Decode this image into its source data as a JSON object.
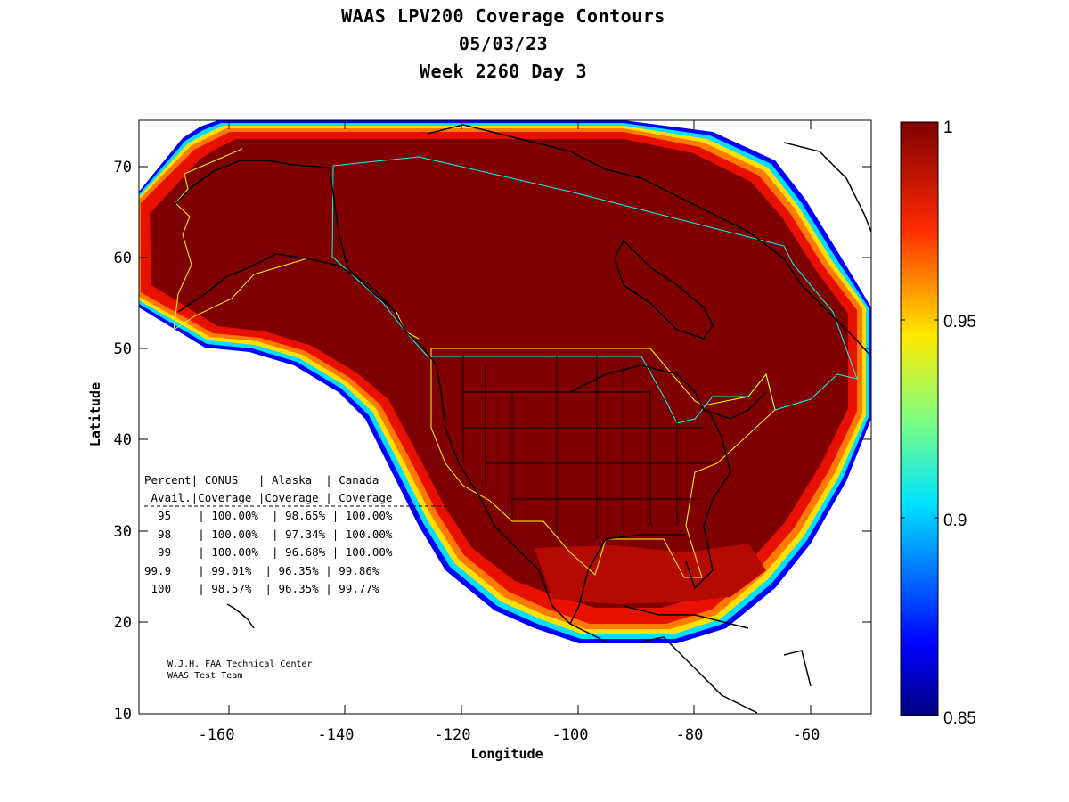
{
  "title": {
    "line1": "WAAS LPV200 Coverage Contours",
    "line2": "05/03/23",
    "line3": "Week 2260 Day 3"
  },
  "axes": {
    "xlabel": "Longitude",
    "ylabel": "Latitude",
    "x_ticks": [
      "-160",
      "-140",
      "-120",
      "-100",
      "-80",
      "-60"
    ],
    "y_ticks": [
      "10",
      "20",
      "30",
      "40",
      "50",
      "60",
      "70"
    ],
    "xlim": [
      -175,
      -50
    ],
    "ylim": [
      10,
      75
    ]
  },
  "colorbar": {
    "range": [
      0.85,
      1.0
    ],
    "ticks": [
      "1",
      "0.95",
      "0.9",
      "0.85"
    ],
    "colormap": "jet"
  },
  "table": {
    "header1": "Percent| CONUS   | Alaska  | Canada",
    "header2": " Avail.|Coverage |Coverage | Coverage",
    "separator": "----------------------------------------",
    "rows": [
      "  95    | 100.00%  | 98.65% | 100.00%",
      "  98    | 100.00%  | 97.34% | 100.00%",
      "  99    | 100.00%  | 96.68% | 100.00%",
      "99.9    | 99.01%  | 96.35% | 99.86%",
      " 100    | 98.57%  | 96.35% | 99.77%"
    ]
  },
  "credit": {
    "line1": "W.J.H. FAA Technical Center",
    "line2": "WAAS Test Team"
  },
  "chart_data": {
    "type": "heatmap",
    "title": "WAAS LPV200 Coverage Contours",
    "subtitle": [
      "05/03/23",
      "Week 2260 Day 3"
    ],
    "xlabel": "Longitude",
    "ylabel": "Latitude",
    "xlim": [
      -175,
      -50
    ],
    "ylim": [
      10,
      75
    ],
    "colorbar_range": [
      0.85,
      1.0
    ],
    "coverage_percent": {
      "columns": [
        "Percent Avail.",
        "CONUS Coverage",
        "Alaska Coverage",
        "Canada Coverage"
      ],
      "rows": [
        [
          "95",
          "100.00%",
          "98.65%",
          "100.00%"
        ],
        [
          "98",
          "100.00%",
          "97.34%",
          "100.00%"
        ],
        [
          "99",
          "100.00%",
          "96.68%",
          "100.00%"
        ],
        [
          "99.9",
          "99.01%",
          "96.35%",
          "99.86%"
        ],
        [
          "100",
          "98.57%",
          "96.35%",
          "99.77%"
        ]
      ]
    }
  }
}
